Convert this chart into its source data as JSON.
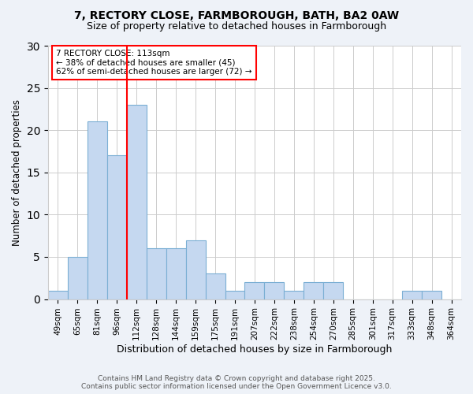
{
  "title1": "7, RECTORY CLOSE, FARMBOROUGH, BATH, BA2 0AW",
  "title2": "Size of property relative to detached houses in Farmborough",
  "xlabel": "Distribution of detached houses by size in Farmborough",
  "ylabel": "Number of detached properties",
  "categories": [
    "49sqm",
    "65sqm",
    "81sqm",
    "96sqm",
    "112sqm",
    "128sqm",
    "144sqm",
    "159sqm",
    "175sqm",
    "191sqm",
    "207sqm",
    "222sqm",
    "238sqm",
    "254sqm",
    "270sqm",
    "285sqm",
    "301sqm",
    "317sqm",
    "333sqm",
    "348sqm",
    "364sqm"
  ],
  "values": [
    1,
    5,
    21,
    17,
    23,
    6,
    6,
    7,
    3,
    1,
    2,
    2,
    1,
    2,
    2,
    0,
    0,
    0,
    1,
    1,
    0
  ],
  "bar_color": "#c5d8f0",
  "bar_edge_color": "#7bafd4",
  "vline_pos": 3.5,
  "vline_color": "red",
  "annotation_title": "7 RECTORY CLOSE: 113sqm",
  "annotation_line2": "← 38% of detached houses are smaller (45)",
  "annotation_line3": "62% of semi-detached houses are larger (72) →",
  "ylim": [
    0,
    30
  ],
  "yticks": [
    0,
    5,
    10,
    15,
    20,
    25,
    30
  ],
  "footer1": "Contains HM Land Registry data © Crown copyright and database right 2025.",
  "footer2": "Contains public sector information licensed under the Open Government Licence v3.0.",
  "background_color": "#eef2f8",
  "plot_background_color": "#ffffff"
}
